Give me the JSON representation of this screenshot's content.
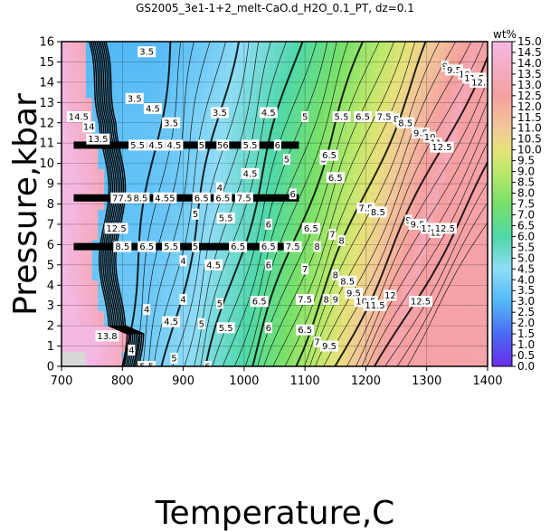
{
  "chart_data": {
    "type": "heatmap",
    "title": "GS2005_3e1-1+2_melt-CaO.d_H2O_0.1_PT, dz=0.1",
    "xlabel": "Temperature,C",
    "ylabel": "Pressure,kbar",
    "xlim": [
      700,
      1400
    ],
    "ylim": [
      0,
      16
    ],
    "x_ticks": [
      700,
      800,
      900,
      1000,
      1100,
      1200,
      1300,
      1400
    ],
    "y_ticks": [
      0,
      1,
      2,
      3,
      4,
      5,
      6,
      7,
      8,
      9,
      10,
      11,
      12,
      13,
      14,
      15,
      16
    ],
    "grid": true,
    "colorbar": {
      "label": "wt%",
      "range": [
        0.0,
        15.0
      ],
      "ticks": [
        "0.0",
        "0.5",
        "1.0",
        "1.5",
        "2.0",
        "2.5",
        "3.0",
        "3.5",
        "4.0",
        "4.5",
        "5.0",
        "5.5",
        "6.0",
        "6.5",
        "7.0",
        "7.5",
        "8.0",
        "8.5",
        "9.0",
        "9.5",
        "10.0",
        "10.5",
        "11.0",
        "11.5",
        "12.0",
        "12.5",
        "13.0",
        "13.5",
        "14.0",
        "14.5",
        "15.0"
      ],
      "stops": [
        {
          "v": 0.0,
          "c": "#6a2ce8"
        },
        {
          "v": 1.5,
          "c": "#4a6cf2"
        },
        {
          "v": 3.0,
          "c": "#52b8f6"
        },
        {
          "v": 4.5,
          "c": "#8fdcf5"
        },
        {
          "v": 6.0,
          "c": "#4fd8a8"
        },
        {
          "v": 7.5,
          "c": "#78e06a"
        },
        {
          "v": 9.0,
          "c": "#bce86c"
        },
        {
          "v": 10.0,
          "c": "#e6e27a"
        },
        {
          "v": 11.0,
          "c": "#f2c89a"
        },
        {
          "v": 12.5,
          "c": "#f4a0a0"
        },
        {
          "v": 15.0,
          "c": "#f4b8e4"
        }
      ]
    },
    "contour_labels": [
      {
        "t": 840,
        "p": 15.5,
        "text": "3.5"
      },
      {
        "t": 820,
        "p": 13.2,
        "text": "3.5"
      },
      {
        "t": 850,
        "p": 12.7,
        "text": "4.5"
      },
      {
        "t": 880,
        "p": 12.0,
        "text": "3.5"
      },
      {
        "t": 960,
        "p": 12.5,
        "text": "3.5"
      },
      {
        "t": 1040,
        "p": 12.5,
        "text": "4.5"
      },
      {
        "t": 1100,
        "p": 12.3,
        "text": "5"
      },
      {
        "t": 1160,
        "p": 12.3,
        "text": "5.5"
      },
      {
        "t": 1195,
        "p": 12.3,
        "text": "6.5"
      },
      {
        "t": 1230,
        "p": 12.3,
        "text": "7.5"
      },
      {
        "t": 1250,
        "p": 12.2,
        "text": "8"
      },
      {
        "t": 1265,
        "p": 12.0,
        "text": "8.5"
      },
      {
        "t": 1330,
        "p": 14.8,
        "text": "9"
      },
      {
        "t": 1345,
        "p": 14.6,
        "text": "9.5"
      },
      {
        "t": 1362,
        "p": 14.4,
        "text": "10"
      },
      {
        "t": 1378,
        "p": 14.2,
        "text": "11.5"
      },
      {
        "t": 1390,
        "p": 14.0,
        "text": "12.5"
      },
      {
        "t": 1290,
        "p": 11.5,
        "text": "9.5"
      },
      {
        "t": 1305,
        "p": 11.3,
        "text": "10"
      },
      {
        "t": 1315,
        "p": 11.0,
        "text": "11"
      },
      {
        "t": 1325,
        "p": 10.8,
        "text": "12.5"
      },
      {
        "t": 1010,
        "p": 9.5,
        "text": "4.5"
      },
      {
        "t": 1070,
        "p": 10.2,
        "text": "5"
      },
      {
        "t": 1130,
        "p": 10.2,
        "text": "6"
      },
      {
        "t": 1150,
        "p": 9.3,
        "text": "6.5"
      },
      {
        "t": 1140,
        "p": 10.4,
        "text": "6.5"
      },
      {
        "t": 960,
        "p": 8.8,
        "text": "4"
      },
      {
        "t": 1080,
        "p": 8.5,
        "text": "6"
      },
      {
        "t": 1200,
        "p": 7.8,
        "text": "7.5"
      },
      {
        "t": 1220,
        "p": 7.6,
        "text": "8.5"
      },
      {
        "t": 1270,
        "p": 7.2,
        "text": "9"
      },
      {
        "t": 1285,
        "p": 7.0,
        "text": "9.5"
      },
      {
        "t": 1300,
        "p": 6.8,
        "text": "11"
      },
      {
        "t": 1315,
        "p": 6.6,
        "text": "12"
      },
      {
        "t": 1330,
        "p": 6.8,
        "text": "12.5"
      },
      {
        "t": 920,
        "p": 7.5,
        "text": "5"
      },
      {
        "t": 970,
        "p": 7.3,
        "text": "5.5"
      },
      {
        "t": 1040,
        "p": 7.0,
        "text": "6"
      },
      {
        "t": 1110,
        "p": 6.8,
        "text": "6.5"
      },
      {
        "t": 1145,
        "p": 6.5,
        "text": "7"
      },
      {
        "t": 1160,
        "p": 6.2,
        "text": "8"
      },
      {
        "t": 900,
        "p": 5.2,
        "text": "4"
      },
      {
        "t": 950,
        "p": 5.0,
        "text": "4.5"
      },
      {
        "t": 1040,
        "p": 5.0,
        "text": "6"
      },
      {
        "t": 1100,
        "p": 4.8,
        "text": "7"
      },
      {
        "t": 1150,
        "p": 4.5,
        "text": "8"
      },
      {
        "t": 1170,
        "p": 4.2,
        "text": "8.5"
      },
      {
        "t": 1180,
        "p": 3.6,
        "text": "9.5"
      },
      {
        "t": 1200,
        "p": 3.2,
        "text": "10.5"
      },
      {
        "t": 1215,
        "p": 3.0,
        "text": "11.5"
      },
      {
        "t": 1240,
        "p": 3.5,
        "text": "12"
      },
      {
        "t": 1290,
        "p": 3.2,
        "text": "12.5"
      },
      {
        "t": 900,
        "p": 3.3,
        "text": "4"
      },
      {
        "t": 960,
        "p": 3.1,
        "text": "5"
      },
      {
        "t": 1025,
        "p": 3.2,
        "text": "6.5"
      },
      {
        "t": 1100,
        "p": 3.3,
        "text": "7.5"
      },
      {
        "t": 1135,
        "p": 3.3,
        "text": "8"
      },
      {
        "t": 1150,
        "p": 3.3,
        "text": "9"
      },
      {
        "t": 840,
        "p": 2.8,
        "text": "4"
      },
      {
        "t": 880,
        "p": 2.2,
        "text": "4.5"
      },
      {
        "t": 930,
        "p": 2.1,
        "text": "5"
      },
      {
        "t": 970,
        "p": 1.9,
        "text": "5.5"
      },
      {
        "t": 1040,
        "p": 1.9,
        "text": "6"
      },
      {
        "t": 1100,
        "p": 1.8,
        "text": "6.5"
      },
      {
        "t": 1120,
        "p": 1.2,
        "text": "7"
      },
      {
        "t": 1140,
        "p": 1.0,
        "text": "9.5"
      },
      {
        "t": 815,
        "p": 0.8,
        "text": "4"
      },
      {
        "t": 885,
        "p": 0.4,
        "text": "5"
      },
      {
        "t": 940,
        "p": 0.0,
        "text": "6"
      },
      {
        "t": 840,
        "p": 0.0,
        "text": "5.5"
      },
      {
        "t": 728,
        "p": 12.3,
        "text": "14.5"
      },
      {
        "t": 745,
        "p": 11.8,
        "text": "14"
      },
      {
        "t": 760,
        "p": 11.2,
        "text": "13.5"
      },
      {
        "t": 790,
        "p": 6.8,
        "text": "12.5"
      },
      {
        "t": 775,
        "p": 1.5,
        "text": "13.8"
      }
    ],
    "horizontal_bands": [
      {
        "p": 10.9,
        "labels": [
          {
            "t": 825,
            "text": "5.5"
          },
          {
            "t": 855,
            "text": "4.5"
          },
          {
            "t": 885,
            "text": "4.5"
          },
          {
            "t": 930,
            "text": "5"
          },
          {
            "t": 965,
            "text": "56"
          },
          {
            "t": 1010,
            "text": "5.5"
          },
          {
            "t": 1055,
            "text": "6"
          }
        ]
      },
      {
        "p": 8.3,
        "labels": [
          {
            "t": 800,
            "text": "77.5"
          },
          {
            "t": 830,
            "text": "8.5"
          },
          {
            "t": 870,
            "text": "4.55"
          },
          {
            "t": 930,
            "text": "6.5"
          },
          {
            "t": 965,
            "text": "6.5"
          },
          {
            "t": 1000,
            "text": "7.5"
          }
        ]
      },
      {
        "p": 5.9,
        "labels": [
          {
            "t": 800,
            "text": "8.5"
          },
          {
            "t": 840,
            "text": "6.5"
          },
          {
            "t": 880,
            "text": "5.5"
          },
          {
            "t": 920,
            "text": "5"
          },
          {
            "t": 990,
            "text": "6.5"
          },
          {
            "t": 1040,
            "text": "6.5"
          },
          {
            "t": 1080,
            "text": "7.5"
          },
          {
            "t": 1120,
            "text": "8"
          }
        ]
      }
    ]
  }
}
